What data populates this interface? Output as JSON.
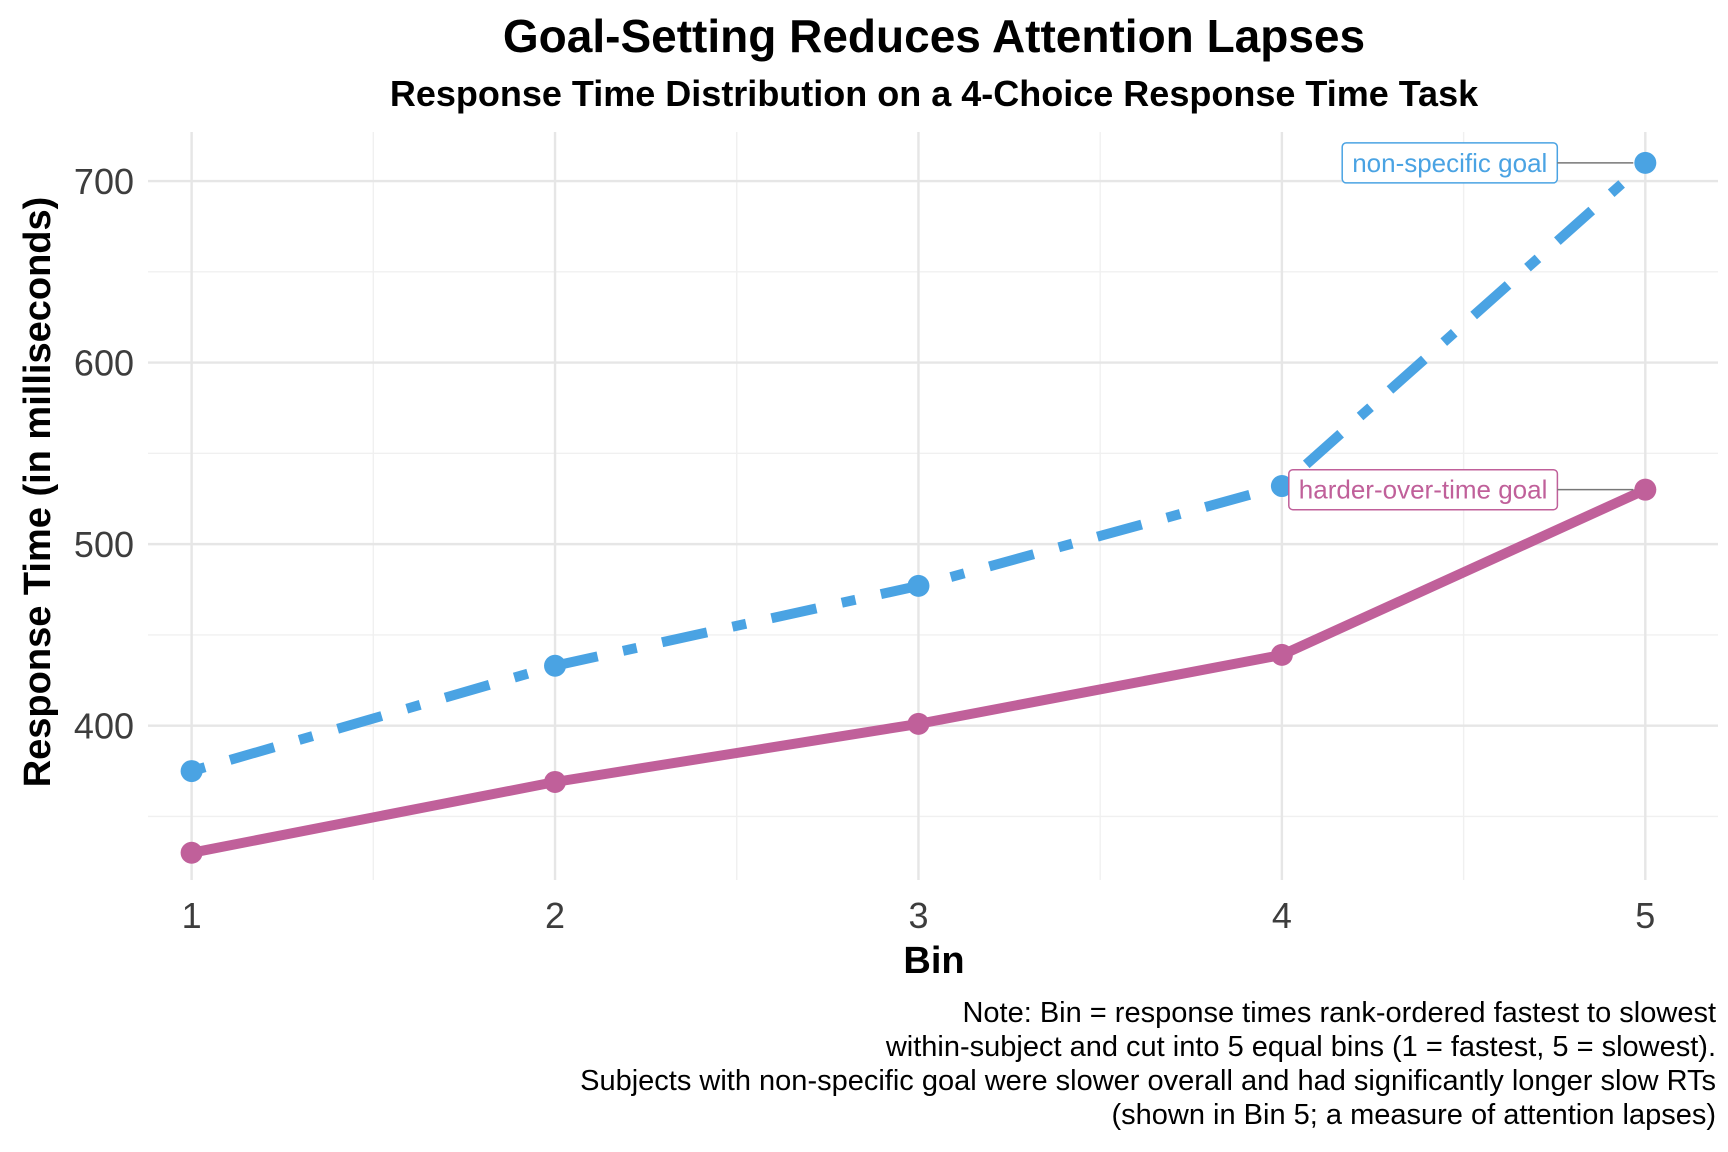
{
  "chart_data": {
    "type": "line",
    "title": "Goal-Setting Reduces Attention Lapses",
    "subtitle": "Response Time Distribution on a 4-Choice Response Time Task",
    "xlabel": "Bin",
    "ylabel": "Response Time (in milliseconds)",
    "x": [
      1,
      2,
      3,
      4,
      5
    ],
    "x_tick_labels": [
      "1",
      "2",
      "3",
      "4",
      "5"
    ],
    "xlim": [
      0.88,
      5.2
    ],
    "y_ticks": [
      400,
      500,
      600,
      700
    ],
    "y_tick_labels": [
      "400",
      "500",
      "600",
      "700"
    ],
    "ylim": [
      315,
      727
    ],
    "grid": true,
    "legend": "none (direct labels at bin 5)",
    "series": [
      {
        "name": "non-specific goal",
        "values": [
          375,
          433,
          477,
          532,
          710
        ],
        "color": "#4aa3e3",
        "line_style": "dotdash"
      },
      {
        "name": "harder-over-time goal",
        "values": [
          330,
          369,
          401,
          439,
          530
        ],
        "color": "#c0609a",
        "line_style": "solid"
      }
    ],
    "caption": [
      "Note: Bin = response times rank-ordered fastest to slowest",
      "within-subject and cut into 5 equal bins (1 = fastest, 5 = slowest).",
      "Subjects with non-specific goal were slower overall and had significantly longer slow RTs",
      "(shown in Bin 5; a measure of attention lapses)"
    ]
  }
}
